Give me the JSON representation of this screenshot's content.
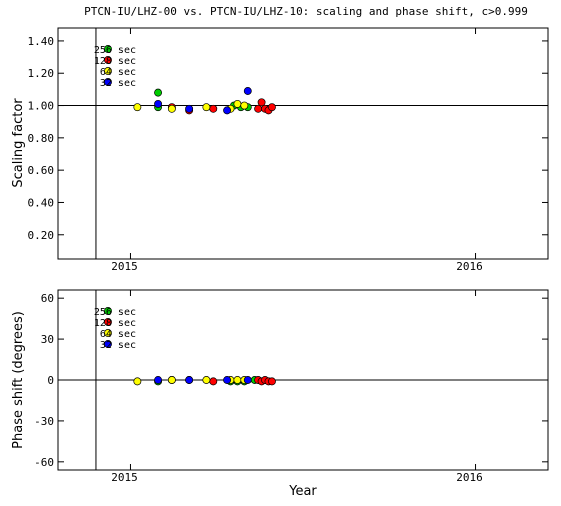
{
  "chart_data": [
    {
      "type": "scatter",
      "title": "PTCN-IU/LHZ-00 vs. PTCN-IU/LHZ-10: scaling and phase shift, c>0.999",
      "xlabel": "",
      "ylabel": "Scaling factor",
      "ylim": [
        0.05,
        1.48
      ],
      "y_ticks": [
        0.2,
        0.4,
        0.6,
        0.8,
        1.0,
        1.2,
        1.4
      ],
      "y_tick_labels": [
        "0.20",
        "0.40",
        "0.60",
        "0.80",
        "1.00",
        "1.20",
        "1.40"
      ],
      "reference_line": 1.0,
      "legend": {
        "placement": "top-left",
        "entries": [
          "256 sec",
          "128 sec",
          "64 sec",
          "32 sec"
        ]
      },
      "series": [
        {
          "name": "256 sec",
          "color": "#00cc00",
          "points": [
            [
              2015.08,
              1.08
            ],
            [
              2015.08,
              0.99
            ],
            [
              2015.3,
              1.0
            ],
            [
              2015.32,
              0.99
            ],
            [
              2015.34,
              0.99
            ]
          ]
        },
        {
          "name": "128 sec",
          "color": "#ff0000",
          "points": [
            [
              2015.12,
              0.99
            ],
            [
              2015.17,
              0.97
            ],
            [
              2015.24,
              0.98
            ],
            [
              2015.37,
              0.98
            ],
            [
              2015.38,
              1.02
            ],
            [
              2015.39,
              0.98
            ],
            [
              2015.4,
              0.97
            ],
            [
              2015.41,
              0.99
            ]
          ]
        },
        {
          "name": "64 sec",
          "color": "#ffff00",
          "points": [
            [
              2015.02,
              0.99
            ],
            [
              2015.12,
              0.98
            ],
            [
              2015.22,
              0.99
            ],
            [
              2015.29,
              0.98
            ],
            [
              2015.31,
              1.01
            ],
            [
              2015.33,
              1.0
            ]
          ]
        },
        {
          "name": "32 sec",
          "color": "#0000ff",
          "points": [
            [
              2015.08,
              1.01
            ],
            [
              2015.17,
              0.98
            ],
            [
              2015.28,
              0.97
            ],
            [
              2015.34,
              1.09
            ]
          ]
        }
      ]
    },
    {
      "type": "scatter",
      "title": "",
      "xlabel": "Year",
      "ylabel": "Phase shift (degrees)",
      "ylim": [
        -66,
        66
      ],
      "y_ticks": [
        -60,
        -30,
        0,
        30,
        60
      ],
      "y_tick_labels": [
        "-60",
        "-30",
        "0",
        "30",
        "60"
      ],
      "reference_line": 0,
      "legend": {
        "placement": "top-left",
        "entries": [
          "256 sec",
          "128 sec",
          "64 sec",
          "32 sec"
        ]
      },
      "series": [
        {
          "name": "256 sec",
          "color": "#00cc00",
          "points": [
            [
              2015.08,
              -1
            ],
            [
              2015.29,
              -1
            ],
            [
              2015.31,
              -1
            ],
            [
              2015.33,
              -1
            ],
            [
              2015.36,
              0
            ]
          ]
        },
        {
          "name": "128 sec",
          "color": "#ff0000",
          "points": [
            [
              2015.12,
              0
            ],
            [
              2015.17,
              0
            ],
            [
              2015.24,
              -1
            ],
            [
              2015.37,
              0
            ],
            [
              2015.38,
              -1
            ],
            [
              2015.39,
              0
            ],
            [
              2015.4,
              -1
            ],
            [
              2015.41,
              -1
            ]
          ]
        },
        {
          "name": "64 sec",
          "color": "#ffff00",
          "points": [
            [
              2015.02,
              -1
            ],
            [
              2015.12,
              0
            ],
            [
              2015.22,
              0
            ],
            [
              2015.29,
              0
            ],
            [
              2015.31,
              0
            ],
            [
              2015.33,
              0
            ]
          ]
        },
        {
          "name": "32 sec",
          "color": "#0000ff",
          "points": [
            [
              2015.08,
              0
            ],
            [
              2015.17,
              0
            ],
            [
              2015.28,
              0
            ],
            [
              2015.34,
              0
            ]
          ]
        }
      ]
    }
  ],
  "x_axis": {
    "xlim": [
      2014.79,
      2016.21
    ],
    "marker_line_x": 2014.9,
    "ticks": [
      2015,
      2016
    ],
    "tick_labels": [
      "2015",
      "2016"
    ]
  }
}
